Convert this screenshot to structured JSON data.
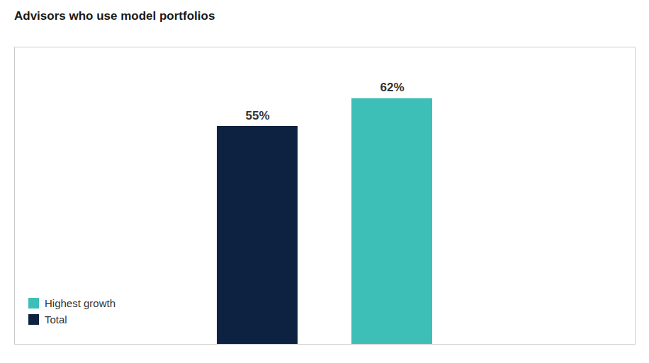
{
  "chart_data": {
    "type": "bar",
    "title": "Advisors who use model portfolios",
    "categories": [
      "Total",
      "Highest growth"
    ],
    "values": [
      55,
      62
    ],
    "value_labels": [
      "55%",
      "62%"
    ],
    "colors": [
      "#0d2240",
      "#3dbfb8"
    ],
    "ylim": [
      0,
      75
    ],
    "data_labels": true,
    "tick_labels": false,
    "legend": "lower left",
    "grid": false
  }
}
